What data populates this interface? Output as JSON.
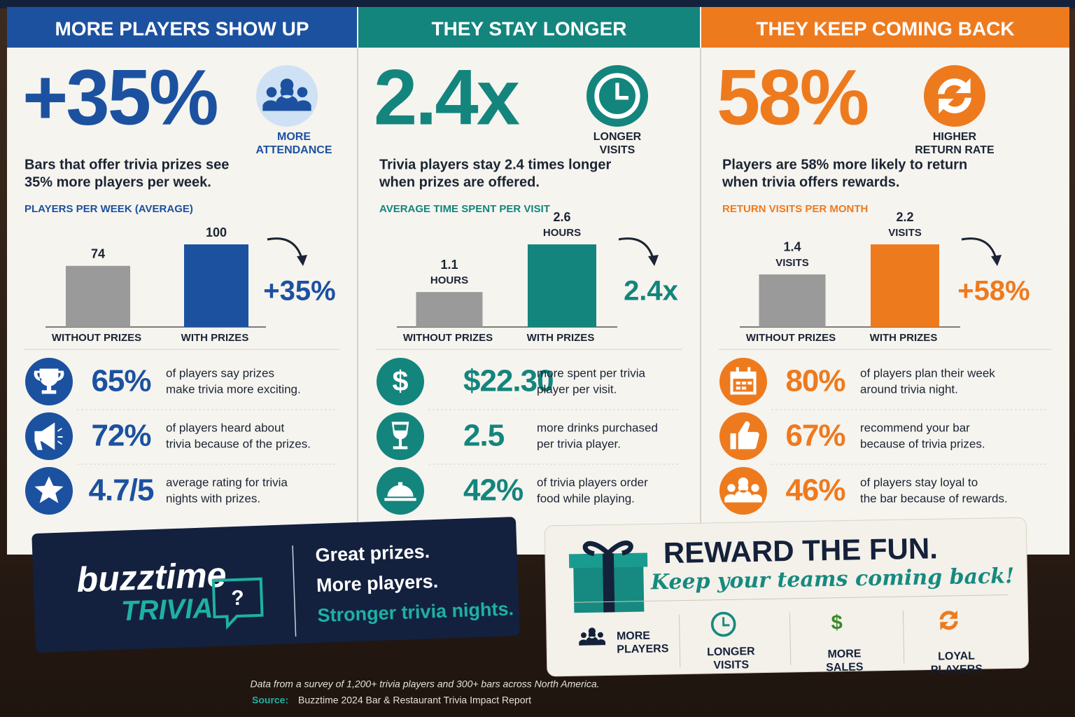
{
  "panels": [
    {
      "header": "MORE PLAYERS SHOW UP",
      "color": "#1c51a0",
      "big_stat": "+35%",
      "big_label": [
        "MORE",
        "ATTENDANCE"
      ],
      "description": [
        "Bars that offer trivia prizes see",
        "35% more players per week."
      ],
      "chart_title": "PLAYERS PER WEEK (AVERAGE)",
      "chart": {
        "type": "bar",
        "categories": [
          "WITHOUT PRIZES",
          "WITH PRIZES"
        ],
        "values": [
          74,
          100
        ],
        "colors": [
          "#9a9a9a",
          "#1c51a0"
        ]
      },
      "change_label": "+35%",
      "stats": [
        {
          "value": "65%",
          "text": [
            "of players say prizes",
            "make trivia more exciting."
          ]
        },
        {
          "value": "72%",
          "text": [
            "of players heard about",
            "trivia because of the prizes."
          ]
        },
        {
          "value": "4.7/5",
          "text": [
            "average rating for trivia",
            "nights with prizes."
          ]
        }
      ]
    },
    {
      "header": "THEY STAY LONGER",
      "color": "#13857d",
      "big_stat": "2.4x",
      "big_label": [
        "LONGER",
        "VISITS"
      ],
      "description": [
        "Trivia players stay 2.4 times longer",
        "when prizes are offered."
      ],
      "chart_title": "AVERAGE TIME SPENT PER VISIT",
      "chart": {
        "type": "bar",
        "categories": [
          "WITHOUT PRIZES",
          "WITH PRIZES"
        ],
        "values": [
          1.1,
          2.6
        ],
        "unit": "HOURS",
        "colors": [
          "#9a9a9a",
          "#13857d"
        ]
      },
      "change_label": "2.4x",
      "stats": [
        {
          "value": "$22.30",
          "text": [
            "more spent per trivia",
            "player per visit."
          ]
        },
        {
          "value": "2.5",
          "text": [
            "more drinks purchased",
            "per trivia player."
          ]
        },
        {
          "value": "42%",
          "text": [
            "of trivia players order",
            "food while playing."
          ]
        }
      ]
    },
    {
      "header": "THEY KEEP COMING BACK",
      "color": "#ee7a1e",
      "big_stat": "58%",
      "big_label": [
        "HIGHER",
        "RETURN RATE"
      ],
      "description": [
        "Players are 58% more likely to return",
        "when trivia offers rewards."
      ],
      "chart_title": "RETURN VISITS PER MONTH",
      "chart": {
        "type": "bar",
        "categories": [
          "WITHOUT PRIZES",
          "WITH PRIZES"
        ],
        "values": [
          1.4,
          2.2
        ],
        "unit": "VISITS",
        "colors": [
          "#9a9a9a",
          "#ee7a1e"
        ]
      },
      "change_label": "+58%",
      "stats": [
        {
          "value": "80%",
          "text": [
            "of players plan their week",
            "around trivia night."
          ]
        },
        {
          "value": "67%",
          "text": [
            "recommend your bar",
            "because of trivia prizes."
          ]
        },
        {
          "value": "46%",
          "text": [
            "of players stay loyal to",
            "the bar because of rewards."
          ]
        }
      ]
    }
  ],
  "brand": {
    "name": "buzztime",
    "product": "TRIVIA",
    "mark": "?",
    "taglines": [
      "Great prizes.",
      "More players.",
      "Stronger trivia nights."
    ]
  },
  "cta": {
    "title": "REWARD THE FUN.",
    "subtitle": "Keep your teams coming back!",
    "items": [
      {
        "label": [
          "MORE",
          "PLAYERS"
        ]
      },
      {
        "label": [
          "LONGER",
          "VISITS"
        ]
      },
      {
        "label": [
          "MORE",
          "SALES"
        ]
      },
      {
        "label": [
          "LOYAL",
          "PLAYERS"
        ]
      }
    ]
  },
  "footer": {
    "note": "Data from a survey of 1,200+ trivia players and 300+ bars across North America.",
    "source_label": "Source:",
    "source": "Buzztime 2024 Bar & Restaurant Trivia Impact Report"
  }
}
